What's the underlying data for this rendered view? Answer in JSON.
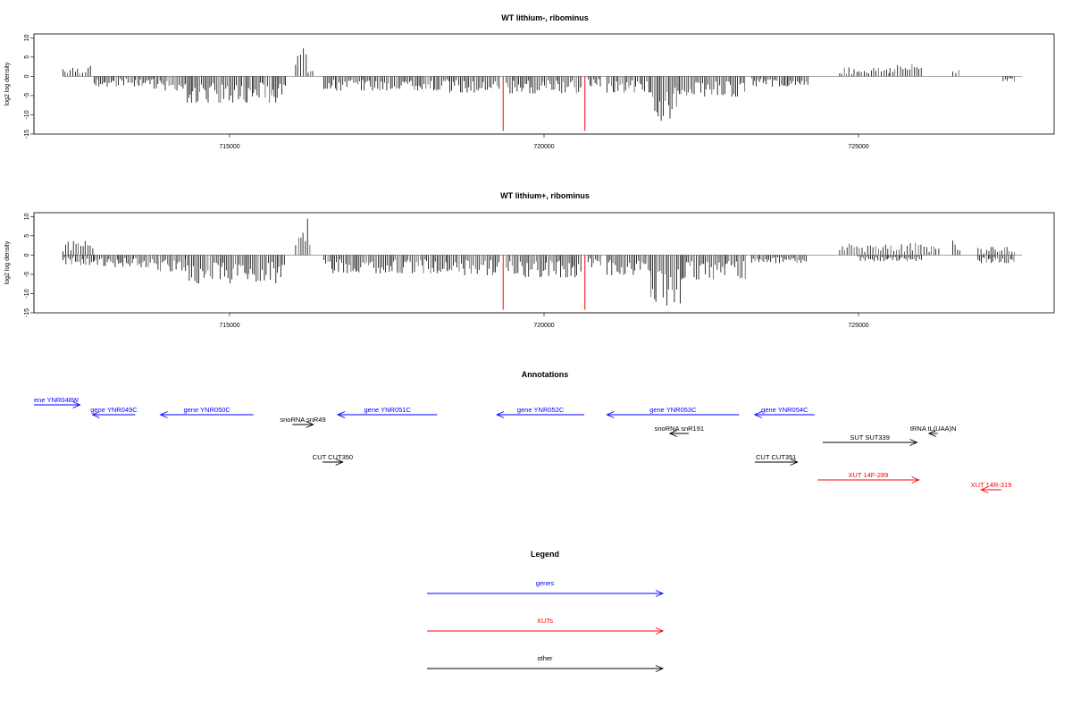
{
  "colors": {
    "gene": "#0000ff",
    "xut": "#ff0000",
    "other": "#000000",
    "spike": "#ff0000"
  },
  "chart_data": [
    {
      "type": "bar",
      "title": "WT lithium-, ribominus",
      "ylabel": "log2 log density",
      "ylim": [
        -15,
        11
      ],
      "yticks": [
        "10",
        "5",
        "0",
        "-5",
        "-10",
        "-15"
      ],
      "xlim": [
        711500,
        727800
      ],
      "xticks": [
        "715000",
        "720000",
        "725000"
      ],
      "red_spikes": [
        {
          "x": 719350,
          "y": -14.2
        },
        {
          "x": 720650,
          "y": -14.2
        }
      ],
      "segments": [
        {
          "x0": 712350,
          "x1": 712800,
          "y": 2.6,
          "sign": 1
        },
        {
          "x0": 712850,
          "x1": 713800,
          "y": -2.5,
          "sign": -1
        },
        {
          "x0": 713800,
          "x1": 714300,
          "y": -3.5,
          "sign": -1
        },
        {
          "x0": 714300,
          "x1": 715900,
          "y": -6.5,
          "sign": -1
        },
        {
          "x0": 716050,
          "x1": 716250,
          "y": 8.5,
          "sign": 1
        },
        {
          "x0": 716250,
          "x1": 716350,
          "y": 2.0,
          "sign": 1
        },
        {
          "x0": 716500,
          "x1": 718500,
          "y": -3.5,
          "sign": -1
        },
        {
          "x0": 718500,
          "x1": 719300,
          "y": -4.0,
          "sign": -1
        },
        {
          "x0": 719400,
          "x1": 720600,
          "y": -4.2,
          "sign": -1
        },
        {
          "x0": 720700,
          "x1": 720900,
          "y": -2.5,
          "sign": -1
        },
        {
          "x0": 721000,
          "x1": 721700,
          "y": -4.0,
          "sign": -1
        },
        {
          "x0": 721700,
          "x1": 722200,
          "y": -11.0,
          "sign": -1
        },
        {
          "x0": 722200,
          "x1": 723200,
          "y": -5.0,
          "sign": -1
        },
        {
          "x0": 723300,
          "x1": 724200,
          "y": -2.5,
          "sign": -1
        },
        {
          "x0": 724700,
          "x1": 725500,
          "y": 2.2,
          "sign": 1
        },
        {
          "x0": 725500,
          "x1": 726000,
          "y": 3.0,
          "sign": 1
        },
        {
          "x0": 726500,
          "x1": 726600,
          "y": 2.5,
          "sign": 1
        },
        {
          "x0": 727300,
          "x1": 727500,
          "y": -1.5,
          "sign": -1
        }
      ]
    },
    {
      "type": "bar",
      "title": "WT lithium+, ribominus",
      "ylabel": "log2 log density",
      "ylim": [
        -15,
        11
      ],
      "yticks": [
        "10",
        "5",
        "0",
        "-5",
        "-10",
        "-15"
      ],
      "xlim": [
        711500,
        727800
      ],
      "xticks": [
        "715000",
        "720000",
        "725000"
      ],
      "red_spikes": [
        {
          "x": 719350,
          "y": -14.2
        },
        {
          "x": 720650,
          "y": -14.2
        }
      ],
      "segments": [
        {
          "x0": 712350,
          "x1": 712850,
          "y": 3.5,
          "sign": 1
        },
        {
          "x0": 712350,
          "x1": 712850,
          "y": -2.5,
          "sign": -1
        },
        {
          "x0": 712850,
          "x1": 713800,
          "y": -3.0,
          "sign": -1
        },
        {
          "x0": 713800,
          "x1": 714300,
          "y": -4.0,
          "sign": -1
        },
        {
          "x0": 714300,
          "x1": 715900,
          "y": -7.0,
          "sign": -1
        },
        {
          "x0": 716050,
          "x1": 716300,
          "y": 9.0,
          "sign": 1
        },
        {
          "x0": 716500,
          "x1": 718500,
          "y": -4.5,
          "sign": -1
        },
        {
          "x0": 718500,
          "x1": 719300,
          "y": -5.0,
          "sign": -1
        },
        {
          "x0": 719400,
          "x1": 720600,
          "y": -5.5,
          "sign": -1
        },
        {
          "x0": 720700,
          "x1": 720900,
          "y": -3.0,
          "sign": -1
        },
        {
          "x0": 721000,
          "x1": 721700,
          "y": -5.0,
          "sign": -1
        },
        {
          "x0": 721700,
          "x1": 722200,
          "y": -12.5,
          "sign": -1
        },
        {
          "x0": 722200,
          "x1": 723200,
          "y": -6.0,
          "sign": -1
        },
        {
          "x0": 723300,
          "x1": 724200,
          "y": -2.0,
          "sign": -1
        },
        {
          "x0": 724700,
          "x1": 726300,
          "y": 3.0,
          "sign": 1
        },
        {
          "x0": 725000,
          "x1": 726000,
          "y": -1.5,
          "sign": -1
        },
        {
          "x0": 726500,
          "x1": 726650,
          "y": 3.8,
          "sign": 1
        },
        {
          "x0": 726900,
          "x1": 727500,
          "y": 2.0,
          "sign": 1
        },
        {
          "x0": 726900,
          "x1": 727500,
          "y": -2.0,
          "sign": -1
        }
      ]
    }
  ],
  "annotations": {
    "title": "Annotations",
    "items": [
      {
        "label": "ene YNR048W",
        "type": "gene",
        "dir": "right",
        "x0": 711500,
        "x1": 712620,
        "row": 0
      },
      {
        "label": "gene YNR049C",
        "type": "gene",
        "dir": "left",
        "x0": 712820,
        "x1": 713500,
        "row": 1
      },
      {
        "label": "gene YNR050C",
        "type": "gene",
        "dir": "left",
        "x0": 713900,
        "x1": 715380,
        "row": 1
      },
      {
        "label": "snoRNA snR49",
        "type": "other",
        "dir": "right",
        "x0": 716000,
        "x1": 716330,
        "row": 2
      },
      {
        "label": "gene YNR051C",
        "type": "gene",
        "dir": "left",
        "x0": 716720,
        "x1": 718300,
        "row": 1
      },
      {
        "label": "gene YNR052C",
        "type": "gene",
        "dir": "left",
        "x0": 719250,
        "x1": 720640,
        "row": 1
      },
      {
        "label": "gene YNR053C",
        "type": "gene",
        "dir": "left",
        "x0": 721000,
        "x1": 723100,
        "row": 1
      },
      {
        "label": "gene YNR054C",
        "type": "gene",
        "dir": "left",
        "x0": 723350,
        "x1": 724300,
        "row": 1
      },
      {
        "label": "snoRNA snR191",
        "type": "other",
        "dir": "left",
        "x0": 722000,
        "x1": 722300,
        "row": 3
      },
      {
        "label": "tRNA tL(UAA)N",
        "type": "other",
        "dir": "left",
        "x0": 726120,
        "x1": 726260,
        "row": 3
      },
      {
        "label": "SUT SUT339",
        "type": "other",
        "dir": "right",
        "x0": 724430,
        "x1": 725930,
        "row": 4
      },
      {
        "label": "CUT CUT350",
        "type": "other",
        "dir": "right",
        "x0": 716480,
        "x1": 716800,
        "row": 5
      },
      {
        "label": "CUT CUT351",
        "type": "other",
        "dir": "right",
        "x0": 723350,
        "x1": 724030,
        "row": 5
      },
      {
        "label": "XUT 14F-289",
        "type": "xut",
        "dir": "right",
        "x0": 724350,
        "x1": 725960,
        "row": 6
      },
      {
        "label": "XUT 14R-319",
        "type": "xut",
        "dir": "left",
        "x0": 726950,
        "x1": 727270,
        "row": 7
      }
    ]
  },
  "legend": {
    "title": "Legend",
    "items": [
      {
        "label": "genes",
        "type": "gene"
      },
      {
        "label": "XUTs",
        "type": "xut"
      },
      {
        "label": "other",
        "type": "other"
      }
    ]
  }
}
